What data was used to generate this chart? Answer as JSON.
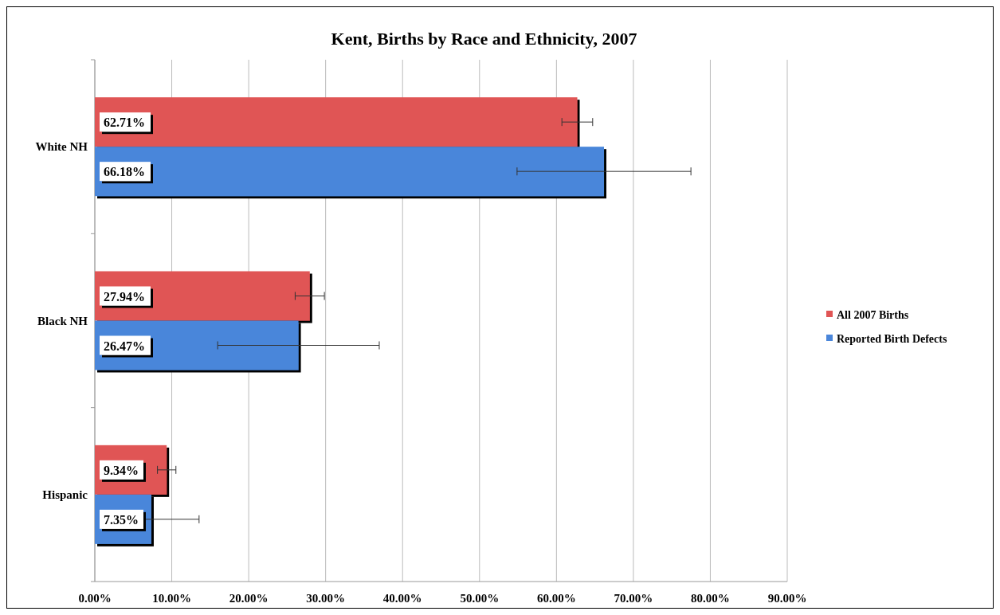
{
  "chart_data": {
    "type": "bar",
    "orientation": "horizontal",
    "title": "Kent, Births by Race and Ethnicity, 2007",
    "categories": [
      "White NH",
      "Black NH",
      "Hispanic"
    ],
    "series": [
      {
        "name": "All 2007 Births",
        "color": "#e05555",
        "values": [
          62.71,
          27.94,
          9.34
        ],
        "value_labels": [
          "62.71%",
          "27.94%",
          "9.34%"
        ],
        "errors": [
          2.0,
          1.9,
          1.2
        ]
      },
      {
        "name": "Reported Birth Defects",
        "color": "#4a86da",
        "values": [
          66.18,
          26.47,
          7.35
        ],
        "value_labels": [
          "66.18%",
          "26.47%",
          "7.35%"
        ],
        "errors": [
          11.3,
          10.5,
          6.2
        ]
      }
    ],
    "xlim": [
      0,
      90
    ],
    "xticks": [
      {
        "value": 0,
        "label": "0.00%"
      },
      {
        "value": 10,
        "label": "10.00%"
      },
      {
        "value": 20,
        "label": "20.00%"
      },
      {
        "value": 30,
        "label": "30.00%"
      },
      {
        "value": 40,
        "label": "40.00%"
      },
      {
        "value": 50,
        "label": "50.00%"
      },
      {
        "value": 60,
        "label": "60.00%"
      },
      {
        "value": 70,
        "label": "70.00%"
      },
      {
        "value": 80,
        "label": "80.00%"
      },
      {
        "value": 90,
        "label": "90.00%"
      }
    ],
    "grid": "x",
    "legend": "right"
  }
}
